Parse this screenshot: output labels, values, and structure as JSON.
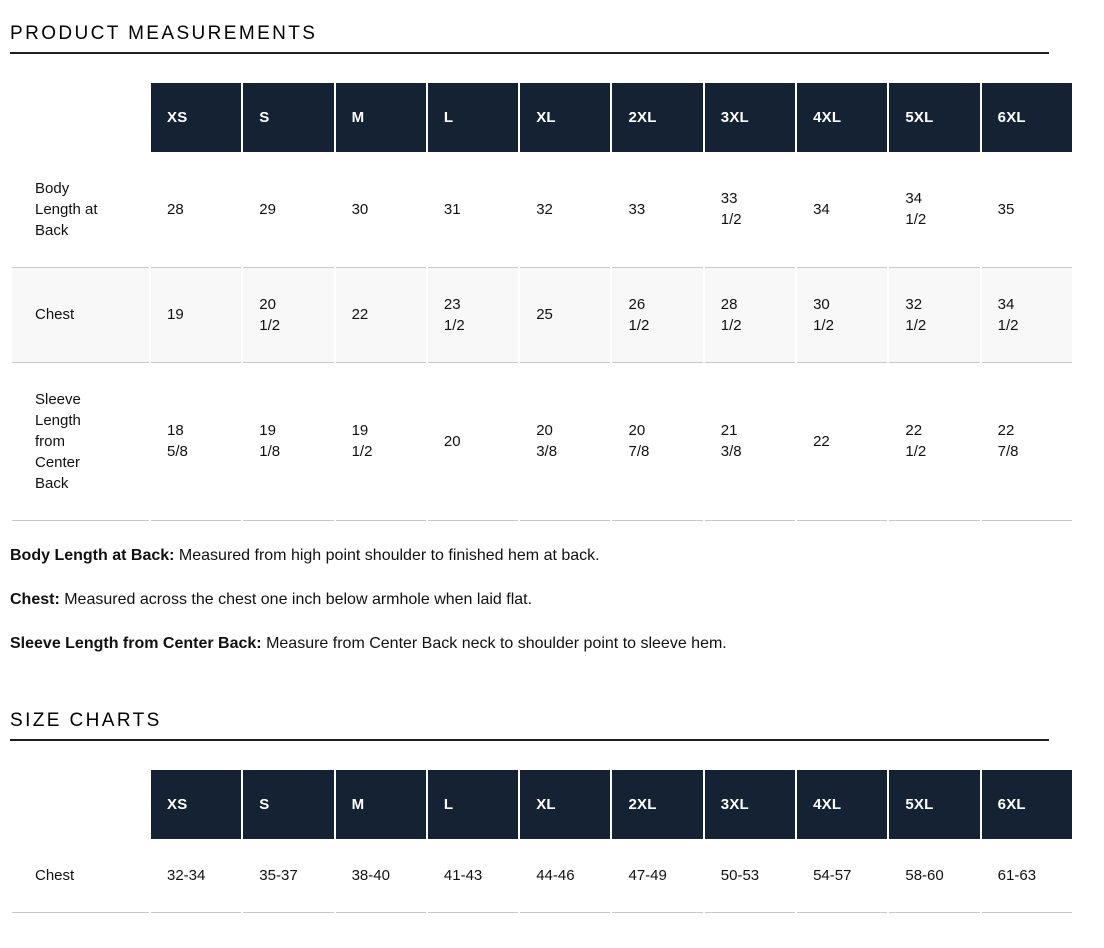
{
  "page": {
    "product_measurements_title": "PRODUCT MEASUREMENTS",
    "size_charts_title": "SIZE CHARTS"
  },
  "colors": {
    "header-bg": "#152233",
    "header-text": "#ffffff",
    "stripe-bg": "#f8f8f8",
    "divider": "#c9c9c9",
    "text": "#111111",
    "title-underline": "#1f1f1f"
  },
  "measurements_table": {
    "columns": [
      "XS",
      "S",
      "M",
      "L",
      "XL",
      "2XL",
      "3XL",
      "4XL",
      "5XL",
      "6XL"
    ],
    "rows": [
      {
        "label": "Body Length at Back",
        "values": [
          "28",
          "29",
          "30",
          "31",
          "32",
          "33",
          "33\n1/2",
          "34",
          "34\n1/2",
          "35"
        ]
      },
      {
        "label": "Chest",
        "values": [
          "19",
          "20\n1/2",
          "22",
          "23\n1/2",
          "25",
          "26\n1/2",
          "28\n1/2",
          "30\n1/2",
          "32\n1/2",
          "34\n1/2"
        ]
      },
      {
        "label": "Sleeve Length from Center Back",
        "values": [
          "18\n5/8",
          "19\n1/8",
          "19\n1/2",
          "20",
          "20\n3/8",
          "20\n7/8",
          "21\n3/8",
          "22",
          "22\n1/2",
          "22\n7/8"
        ]
      }
    ]
  },
  "definitions": [
    {
      "term": "Body Length at Back:",
      "text": " Measured from high point shoulder to finished hem at back."
    },
    {
      "term": "Chest:",
      "text": " Measured across the chest one inch below armhole when laid flat."
    },
    {
      "term": "Sleeve Length from Center Back:",
      "text": " Measure from Center Back neck to shoulder point to sleeve hem."
    }
  ],
  "size_chart_table": {
    "columns": [
      "XS",
      "S",
      "M",
      "L",
      "XL",
      "2XL",
      "3XL",
      "4XL",
      "5XL",
      "6XL"
    ],
    "rows": [
      {
        "label": "Chest",
        "values": [
          "32-34",
          "35-37",
          "38-40",
          "41-43",
          "44-46",
          "47-49",
          "50-53",
          "54-57",
          "58-60",
          "61-63"
        ]
      }
    ]
  }
}
